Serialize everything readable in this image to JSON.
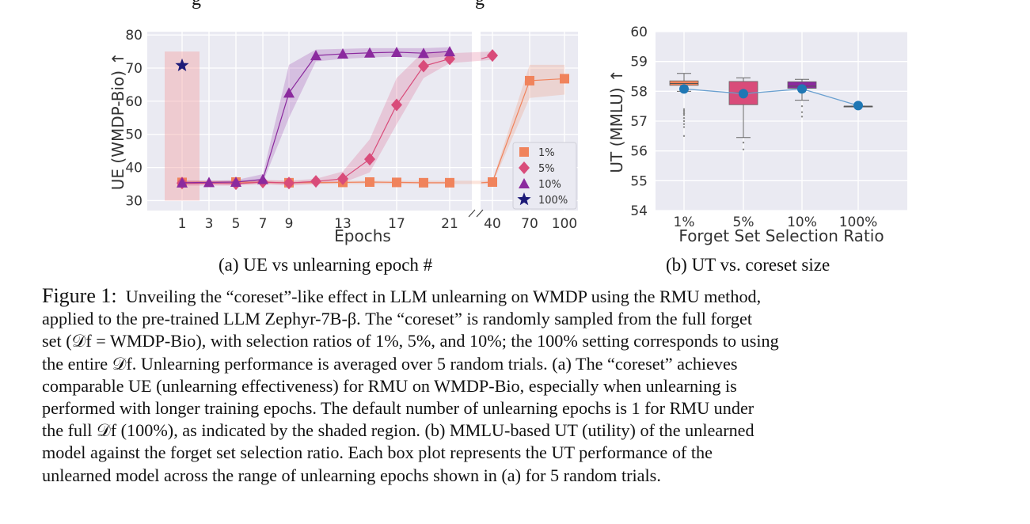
{
  "top_fragment": {
    "left": "g",
    "right": "g"
  },
  "chart_data": [
    {
      "type": "line",
      "title": "",
      "xlabel": "Epochs",
      "ylabel": "UE (WMDP-Bio) ↑",
      "ylim": [
        27,
        81
      ],
      "y_ticks": [
        30,
        40,
        50,
        60,
        70,
        80
      ],
      "x_ticks": [
        "1",
        "3",
        "5",
        "7",
        "9",
        "13",
        "17",
        "21",
        "40",
        "70",
        "100"
      ],
      "x_axis_broken_between": [
        "21",
        "40"
      ],
      "grid": true,
      "legend_position": "lower-right of right panel",
      "shaded_region": {
        "x": "1",
        "y_range": [
          30,
          75
        ]
      },
      "series": [
        {
          "name": "1%",
          "marker": "square",
          "color": "#f0835c",
          "x": [
            "1",
            "5",
            "9",
            "13",
            "15",
            "17",
            "19",
            "21",
            "40",
            "70",
            "100"
          ],
          "y": [
            35.5,
            35.6,
            35.4,
            35.5,
            35.6,
            35.5,
            35.4,
            35.4,
            35.6,
            66.2,
            66.8
          ],
          "band": [
            [
              35,
              36
            ],
            [
              35,
              36
            ],
            [
              35,
              36
            ],
            [
              35,
              36
            ],
            [
              35,
              36
            ],
            [
              35,
              36
            ],
            [
              35,
              36
            ],
            [
              35,
              36
            ],
            [
              35,
              36
            ],
            [
              61,
              71
            ],
            [
              62,
              71
            ]
          ]
        },
        {
          "name": "5%",
          "marker": "diamond",
          "color": "#d94c7a",
          "x": [
            "1",
            "5",
            "7",
            "9",
            "11",
            "13",
            "15",
            "17",
            "19",
            "21",
            "40"
          ],
          "y": [
            35.3,
            35.1,
            35.6,
            35.3,
            35.8,
            36.6,
            42.5,
            58.9,
            70.6,
            72.8,
            73.8
          ],
          "band": [
            [
              34.5,
              36
            ],
            [
              34.5,
              36
            ],
            [
              35,
              36.3
            ],
            [
              34.5,
              36
            ],
            [
              35,
              36.6
            ],
            [
              35.4,
              38.8
            ],
            [
              38.5,
              48.5
            ],
            [
              53,
              67
            ],
            [
              67,
              75
            ],
            [
              71.5,
              74.5
            ],
            [
              72.5,
              75
            ]
          ]
        },
        {
          "name": "10%",
          "marker": "triangle",
          "color": "#8b2a9e",
          "x": [
            "1",
            "3",
            "5",
            "7",
            "9",
            "11",
            "13",
            "15",
            "17",
            "19",
            "21"
          ],
          "y": [
            35.4,
            35.5,
            35.6,
            36.4,
            62.5,
            73.8,
            74.3,
            74.6,
            74.8,
            74.5,
            75.0
          ],
          "band": [
            [
              34.8,
              36
            ],
            [
              35,
              36
            ],
            [
              35,
              36.2
            ],
            [
              35.5,
              38
            ],
            [
              55,
              71
            ],
            [
              72,
              75.6
            ],
            [
              72.8,
              75.8
            ],
            [
              73.2,
              76
            ],
            [
              73.5,
              76
            ],
            [
              73,
              76
            ],
            [
              73.6,
              76.3
            ]
          ]
        },
        {
          "name": "100%",
          "marker": "star",
          "color": "#1d1b78",
          "x": [
            "1"
          ],
          "y": [
            70.8
          ]
        }
      ]
    },
    {
      "type": "box",
      "title": "",
      "xlabel": "Forget Set Selection Ratio",
      "ylabel": "UT (MMLU) ↑",
      "ylim": [
        54,
        60
      ],
      "y_ticks": [
        54,
        55,
        56,
        57,
        58,
        59,
        60
      ],
      "categories": [
        "1%",
        "5%",
        "10%",
        "100%"
      ],
      "grid": true,
      "mean_line_color": "#6aa0d0",
      "means": [
        58.08,
        57.92,
        58.08,
        57.52
      ],
      "boxes": [
        {
          "category": "1%",
          "q1": 58.2,
          "median": 58.26,
          "q3": 58.35,
          "whisker_low": 58.0,
          "whisker_high": 58.6,
          "outliers": [
            57.4,
            57.35,
            57.3,
            57.25,
            57.2,
            57.1,
            57.0,
            56.9,
            56.8,
            56.5
          ],
          "color": "#f0835c"
        },
        {
          "category": "5%",
          "q1": 57.55,
          "median": 57.95,
          "q3": 58.33,
          "whisker_low": 56.45,
          "whisker_high": 58.45,
          "outliers": [
            56.28,
            56.05
          ],
          "color": "#d94c7a"
        },
        {
          "category": "10%",
          "q1": 58.1,
          "median": 58.17,
          "q3": 58.32,
          "whisker_low": 57.7,
          "whisker_high": 58.4,
          "outliers": [
            57.5,
            57.3,
            57.15
          ],
          "color": "#8b2a9e"
        },
        {
          "category": "100%",
          "q1": 57.5,
          "median": 57.5,
          "q3": 57.5,
          "whisker_low": 57.5,
          "whisker_high": 57.5,
          "outliers": [],
          "color": "#4a4a4a"
        }
      ]
    }
  ],
  "captions": {
    "a": "(a) UE vs unlearning epoch #",
    "b": "(b) UT vs. coreset size"
  },
  "figure_caption": {
    "label": "Figure 1:",
    "lines": [
      "Unveiling the “coreset”-like effect in LLM unlearning on WMDP using the RMU method,",
      "applied to the pre-trained LLM Zephyr-7B-β. The “coreset” is randomly sampled from the full forget",
      "set (𝒟f = WMDP-Bio), with selection ratios of 1%, 5%, and 10%; the 100% setting corresponds to using",
      "the entire 𝒟f. Unlearning performance is averaged over 5 random trials. (a) The “coreset” achieves",
      "comparable UE (unlearning effectiveness) for RMU on WMDP-Bio, especially when unlearning is",
      "performed with longer training epochs. The default number of unlearning epochs is 1 for RMU under",
      "the full 𝒟f (100%), as indicated by the shaded region. (b) MMLU-based UT (utility) of the unlearned",
      "model against the forget set selection ratio. Each box plot represents the UT performance of the",
      "unlearned model across the range of unlearning epochs shown in (a) for 5 random trials."
    ]
  }
}
